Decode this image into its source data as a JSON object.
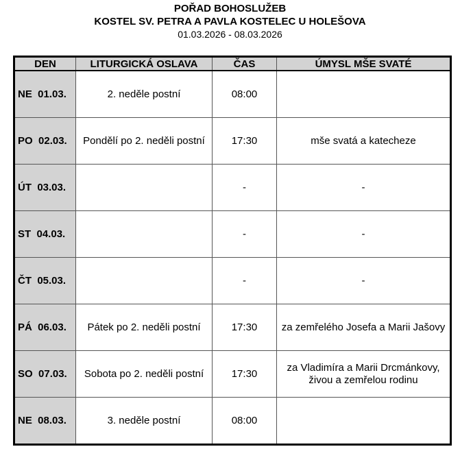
{
  "header": {
    "line1": "POŘAD BOHOSLUŽEB",
    "line2": "KOSTEL SV. PETRA A PAVLA KOSTELEC U HOLEŠOVA",
    "line3": "01.03.2026 - 08.03.2026"
  },
  "table": {
    "columns": [
      "DEN",
      "LITURGICKÁ OSLAVA",
      "ČAS",
      "ÚMYSL MŠE SVATÉ"
    ],
    "rows": [
      {
        "den": "NE  01.03.",
        "oslava": "2. neděle postní",
        "cas": "08:00",
        "umysl": ""
      },
      {
        "den": "PO  02.03.",
        "oslava": "Pondělí po 2. neděli postní",
        "cas": "17:30",
        "umysl": "mše svatá a katecheze"
      },
      {
        "den": "ÚT  03.03.",
        "oslava": "",
        "cas": "-",
        "umysl": "-"
      },
      {
        "den": "ST  04.03.",
        "oslava": "",
        "cas": "-",
        "umysl": "-"
      },
      {
        "den": "ČT  05.03.",
        "oslava": "",
        "cas": "-",
        "umysl": "-"
      },
      {
        "den": "PÁ  06.03.",
        "oslava": "Pátek po 2. neděli postní",
        "cas": "17:30",
        "umysl": "za zemřelého Josefa a Marii Jašovy"
      },
      {
        "den": "SO  07.03.",
        "oslava": "Sobota po 2. neděli postní",
        "cas": "17:30",
        "umysl": "za Vladimíra a Marii Drcmánkovy, živou a zemřelou rodinu"
      },
      {
        "den": "NE  08.03.",
        "oslava": "3. neděle postní",
        "cas": "08:00",
        "umysl": ""
      }
    ]
  }
}
